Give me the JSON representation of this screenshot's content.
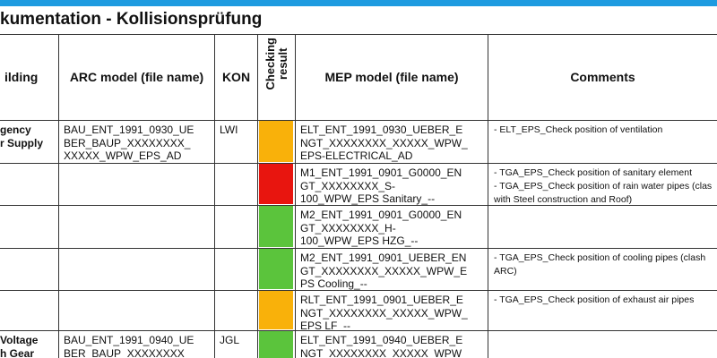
{
  "title": "kumentation - Kollisionsprüfung",
  "table": {
    "header": {
      "building": "ilding",
      "arc": "ARC model (file name)",
      "kon": "KON",
      "result": [
        "Checking",
        "result"
      ],
      "mep": "MEP model (file name)",
      "comments": "Comments"
    },
    "rows": [
      {
        "building": [
          "gency",
          "r Supply"
        ],
        "arc": [
          "BAU_ENT_1991_0930_UE",
          "BER_BAUP_XXXXXXXX_",
          "XXXXX_WPW_EPS_AD"
        ],
        "kon": "LWI",
        "color": "#f9b10a",
        "mep": [
          "ELT_ENT_1991_0930_UEBER_E",
          "NGT_XXXXXXXX_XXXXX_WPW_",
          "EPS-ELECTRICAL_AD"
        ],
        "comments": [
          "- ELT_EPS_Check position of ventilation"
        ]
      },
      {
        "building": [],
        "arc": [],
        "kon": "",
        "color": "#e8150f",
        "mep": [
          "M1_ENT_1991_0901_G0000_EN",
          "GT_XXXXXXXX_S-",
          "100_WPW_EPS Sanitary_--"
        ],
        "comments": [
          "- TGA_EPS_Check position of sanitary element",
          "- TGA_EPS_Check position of rain water pipes (clas",
          "with Steel construction and Roof)"
        ]
      },
      {
        "building": [],
        "arc": [],
        "kon": "",
        "color": "#5bc43c",
        "mep": [
          "M2_ENT_1991_0901_G0000_EN",
          "GT_XXXXXXXX_H-",
          "100_WPW_EPS HZG_--"
        ],
        "comments": []
      },
      {
        "building": [],
        "arc": [],
        "kon": "",
        "color": "#5bc43c",
        "mep": [
          "M2_ENT_1991_0901_UEBER_EN",
          "GT_XXXXXXXX_XXXXX_WPW_E",
          "PS Cooling_--"
        ],
        "comments": [
          "- TGA_EPS_Check position of cooling pipes (clash",
          "ARC)"
        ]
      },
      {
        "building": [],
        "arc": [],
        "kon": "",
        "color": "#f9b10a",
        "mep": [
          "RLT_ENT_1991_0901_UEBER_E",
          "NGT_XXXXXXXX_XXXXX_WPW_",
          "EPS LF_--"
        ],
        "comments": [
          "- TGA_EPS_Check position of exhaust air pipes"
        ]
      },
      {
        "building": [
          "Voltage",
          "h Gear"
        ],
        "arc": [
          "BAU_ENT_1991_0940_UE",
          "BER_BAUP_XXXXXXXX_"
        ],
        "kon": "JGL",
        "color": "#5bc43c",
        "mep": [
          "ELT_ENT_1991_0940_UEBER_E",
          "NGT_XXXXXXXX_XXXXX_WPW_"
        ],
        "comments": []
      }
    ]
  }
}
